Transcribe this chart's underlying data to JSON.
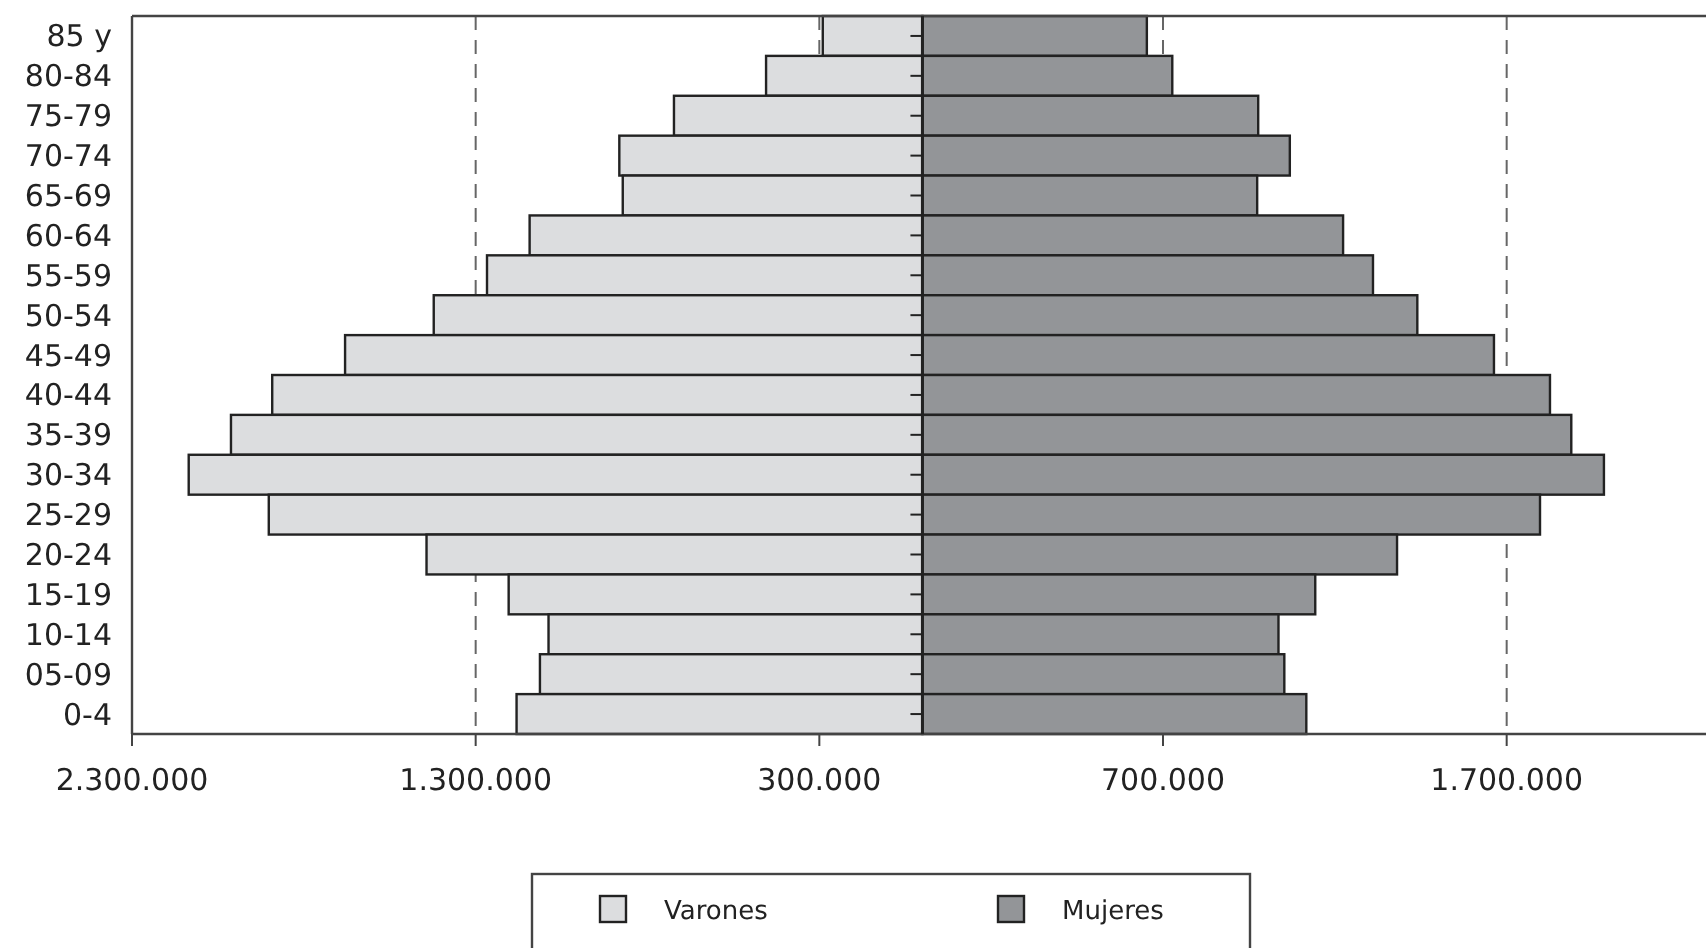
{
  "chart_data": {
    "type": "bar",
    "orientation": "horizontal",
    "stacked": true,
    "categories": [
      "85 y",
      "80-84",
      "75-79",
      "70-74",
      "65-69",
      "60-64",
      "55-59",
      "50-54",
      "45-49",
      "40-44",
      "35-39",
      "30-34",
      "25-29",
      "20-24",
      "15-19",
      "10-14",
      "05-09",
      "0-4"
    ],
    "series": [
      {
        "name": "Varones",
        "color": "#dcdddf",
        "values": [
          -290000,
          -455000,
          -723000,
          -882000,
          -872000,
          -1143000,
          -1267000,
          -1422000,
          -1680000,
          -1892000,
          -2012000,
          -2135000,
          -1902000,
          -1443000,
          -1204000,
          -1088000,
          -1113000,
          -1181000
        ]
      },
      {
        "name": "Mujeres",
        "color": "#939598",
        "values": [
          653000,
          727000,
          977000,
          1069000,
          974000,
          1224000,
          1311000,
          1440000,
          1663000,
          1826000,
          1888000,
          1983000,
          1797000,
          1381000,
          1143000,
          1036000,
          1053000,
          1117000
        ]
      }
    ],
    "xlim": [
      -2300000,
      2280000
    ],
    "xticks": [
      {
        "value": -2300000,
        "label": "2.300.000"
      },
      {
        "value": -1300000,
        "label": "1.300.000"
      },
      {
        "value": -300000,
        "label": "300.000"
      },
      {
        "value": 700000,
        "label": "700.000"
      },
      {
        "value": 1700000,
        "label": "1.700.000"
      }
    ],
    "grid": "x",
    "legend": "bottom"
  }
}
